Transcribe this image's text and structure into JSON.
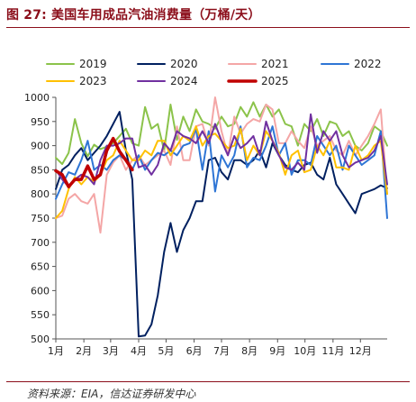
{
  "title": "图 27:  美国车用成品汽油消费量（万桶/天）",
  "source": "资料来源：EIA，信达证券研发中心",
  "chart_data": {
    "type": "line",
    "title": "美国车用成品汽油消费量（万桶/天）",
    "xlabel": "",
    "ylabel": "",
    "ylim": [
      500,
      1000
    ],
    "yticks": [
      500,
      550,
      600,
      650,
      700,
      750,
      800,
      850,
      900,
      950,
      1000
    ],
    "xlim": [
      1,
      53
    ],
    "xticks": [
      {
        "label": "1月",
        "x": 1
      },
      {
        "label": "2月",
        "x": 5.4
      },
      {
        "label": "3月",
        "x": 9.6
      },
      {
        "label": "4月",
        "x": 14
      },
      {
        "label": "5月",
        "x": 18.3
      },
      {
        "label": "6月",
        "x": 22.7
      },
      {
        "label": "7月",
        "x": 27
      },
      {
        "label": "8月",
        "x": 31.4
      },
      {
        "label": "9月",
        "x": 35.8
      },
      {
        "label": "10月",
        "x": 40.1
      },
      {
        "label": "11月",
        "x": 44.5
      },
      {
        "label": "12月",
        "x": 48.8
      }
    ],
    "grid": false,
    "legend_position": "top",
    "legend_columns": 4,
    "series": [
      {
        "name": "2019",
        "color": "#8bc34a",
        "width": 2,
        "values": [
          875,
          862,
          885,
          955,
          905,
          878,
          902,
          893,
          898,
          905,
          920,
          935,
          905,
          900,
          980,
          935,
          945,
          890,
          985,
          912,
          960,
          930,
          975,
          950,
          945,
          935,
          960,
          940,
          945,
          980,
          960,
          990,
          960,
          985,
          960,
          975,
          945,
          940,
          900,
          945,
          930,
          955,
          920,
          950,
          945,
          920,
          930,
          900,
          890,
          905,
          940,
          930,
          900
        ]
      },
      {
        "name": "2020",
        "color": "#002060",
        "width": 2,
        "values": [
          810,
          850,
          860,
          880,
          895,
          870,
          885,
          900,
          920,
          945,
          970,
          890,
          830,
          505,
          507,
          530,
          590,
          680,
          740,
          680,
          725,
          750,
          785,
          785,
          870,
          875,
          845,
          830,
          870,
          870,
          860,
          870,
          890,
          855,
          905,
          880,
          860,
          850,
          845,
          860,
          865,
          840,
          830,
          875,
          820,
          800,
          780,
          760,
          800,
          805,
          810,
          818,
          812
        ]
      },
      {
        "name": "2021",
        "color": "#f4a6a6",
        "width": 2,
        "values": [
          750,
          755,
          790,
          800,
          785,
          780,
          800,
          720,
          840,
          865,
          880,
          850,
          870,
          880,
          860,
          870,
          880,
          890,
          860,
          940,
          870,
          870,
          940,
          945,
          900,
          1000,
          930,
          880,
          960,
          925,
          945,
          955,
          950,
          985,
          975,
          905,
          905,
          930,
          910,
          895,
          940,
          900,
          910,
          920,
          890,
          880,
          910,
          880,
          900,
          920,
          945,
          975,
          800
        ]
      },
      {
        "name": "2022",
        "color": "#2e75d5",
        "width": 2,
        "values": [
          790,
          820,
          845,
          840,
          870,
          910,
          850,
          860,
          850,
          870,
          880,
          870,
          850,
          880,
          850,
          870,
          885,
          880,
          890,
          880,
          900,
          905,
          935,
          850,
          930,
          805,
          880,
          855,
          880,
          940,
          855,
          875,
          870,
          900,
          940,
          880,
          905,
          840,
          870,
          870,
          860,
          920,
          900,
          880,
          900,
          850,
          900,
          880,
          860,
          870,
          880,
          930,
          750
        ]
      },
      {
        "name": "2023",
        "color": "#ffc000",
        "width": 2,
        "values": [
          750,
          765,
          810,
          835,
          820,
          835,
          825,
          840,
          870,
          880,
          910,
          890,
          870,
          870,
          890,
          880,
          910,
          910,
          880,
          900,
          920,
          910,
          940,
          900,
          920,
          925,
          910,
          895,
          900,
          935,
          870,
          900,
          880,
          930,
          910,
          885,
          840,
          880,
          890,
          845,
          850,
          900,
          880,
          910,
          855,
          855,
          850,
          900,
          870,
          880,
          900,
          910,
          800
        ]
      },
      {
        "name": "2024",
        "color": "#7030a0",
        "width": 2,
        "values": [
          850,
          830,
          815,
          830,
          840,
          835,
          820,
          870,
          900,
          900,
          905,
          915,
          915,
          855,
          860,
          840,
          860,
          905,
          890,
          930,
          920,
          915,
          905,
          930,
          905,
          945,
          910,
          880,
          920,
          895,
          905,
          920,
          880,
          950,
          910,
          880,
          855,
          850,
          865,
          850,
          965,
          885,
          930,
          910,
          930,
          880,
          855,
          865,
          870,
          875,
          890,
          920,
          820
        ]
      },
      {
        "name": "2025",
        "color": "#c00000",
        "width": 3.5,
        "values": [
          848,
          840,
          815,
          830,
          830,
          858,
          830,
          840,
          890,
          915,
          888,
          870,
          850
        ]
      }
    ]
  }
}
